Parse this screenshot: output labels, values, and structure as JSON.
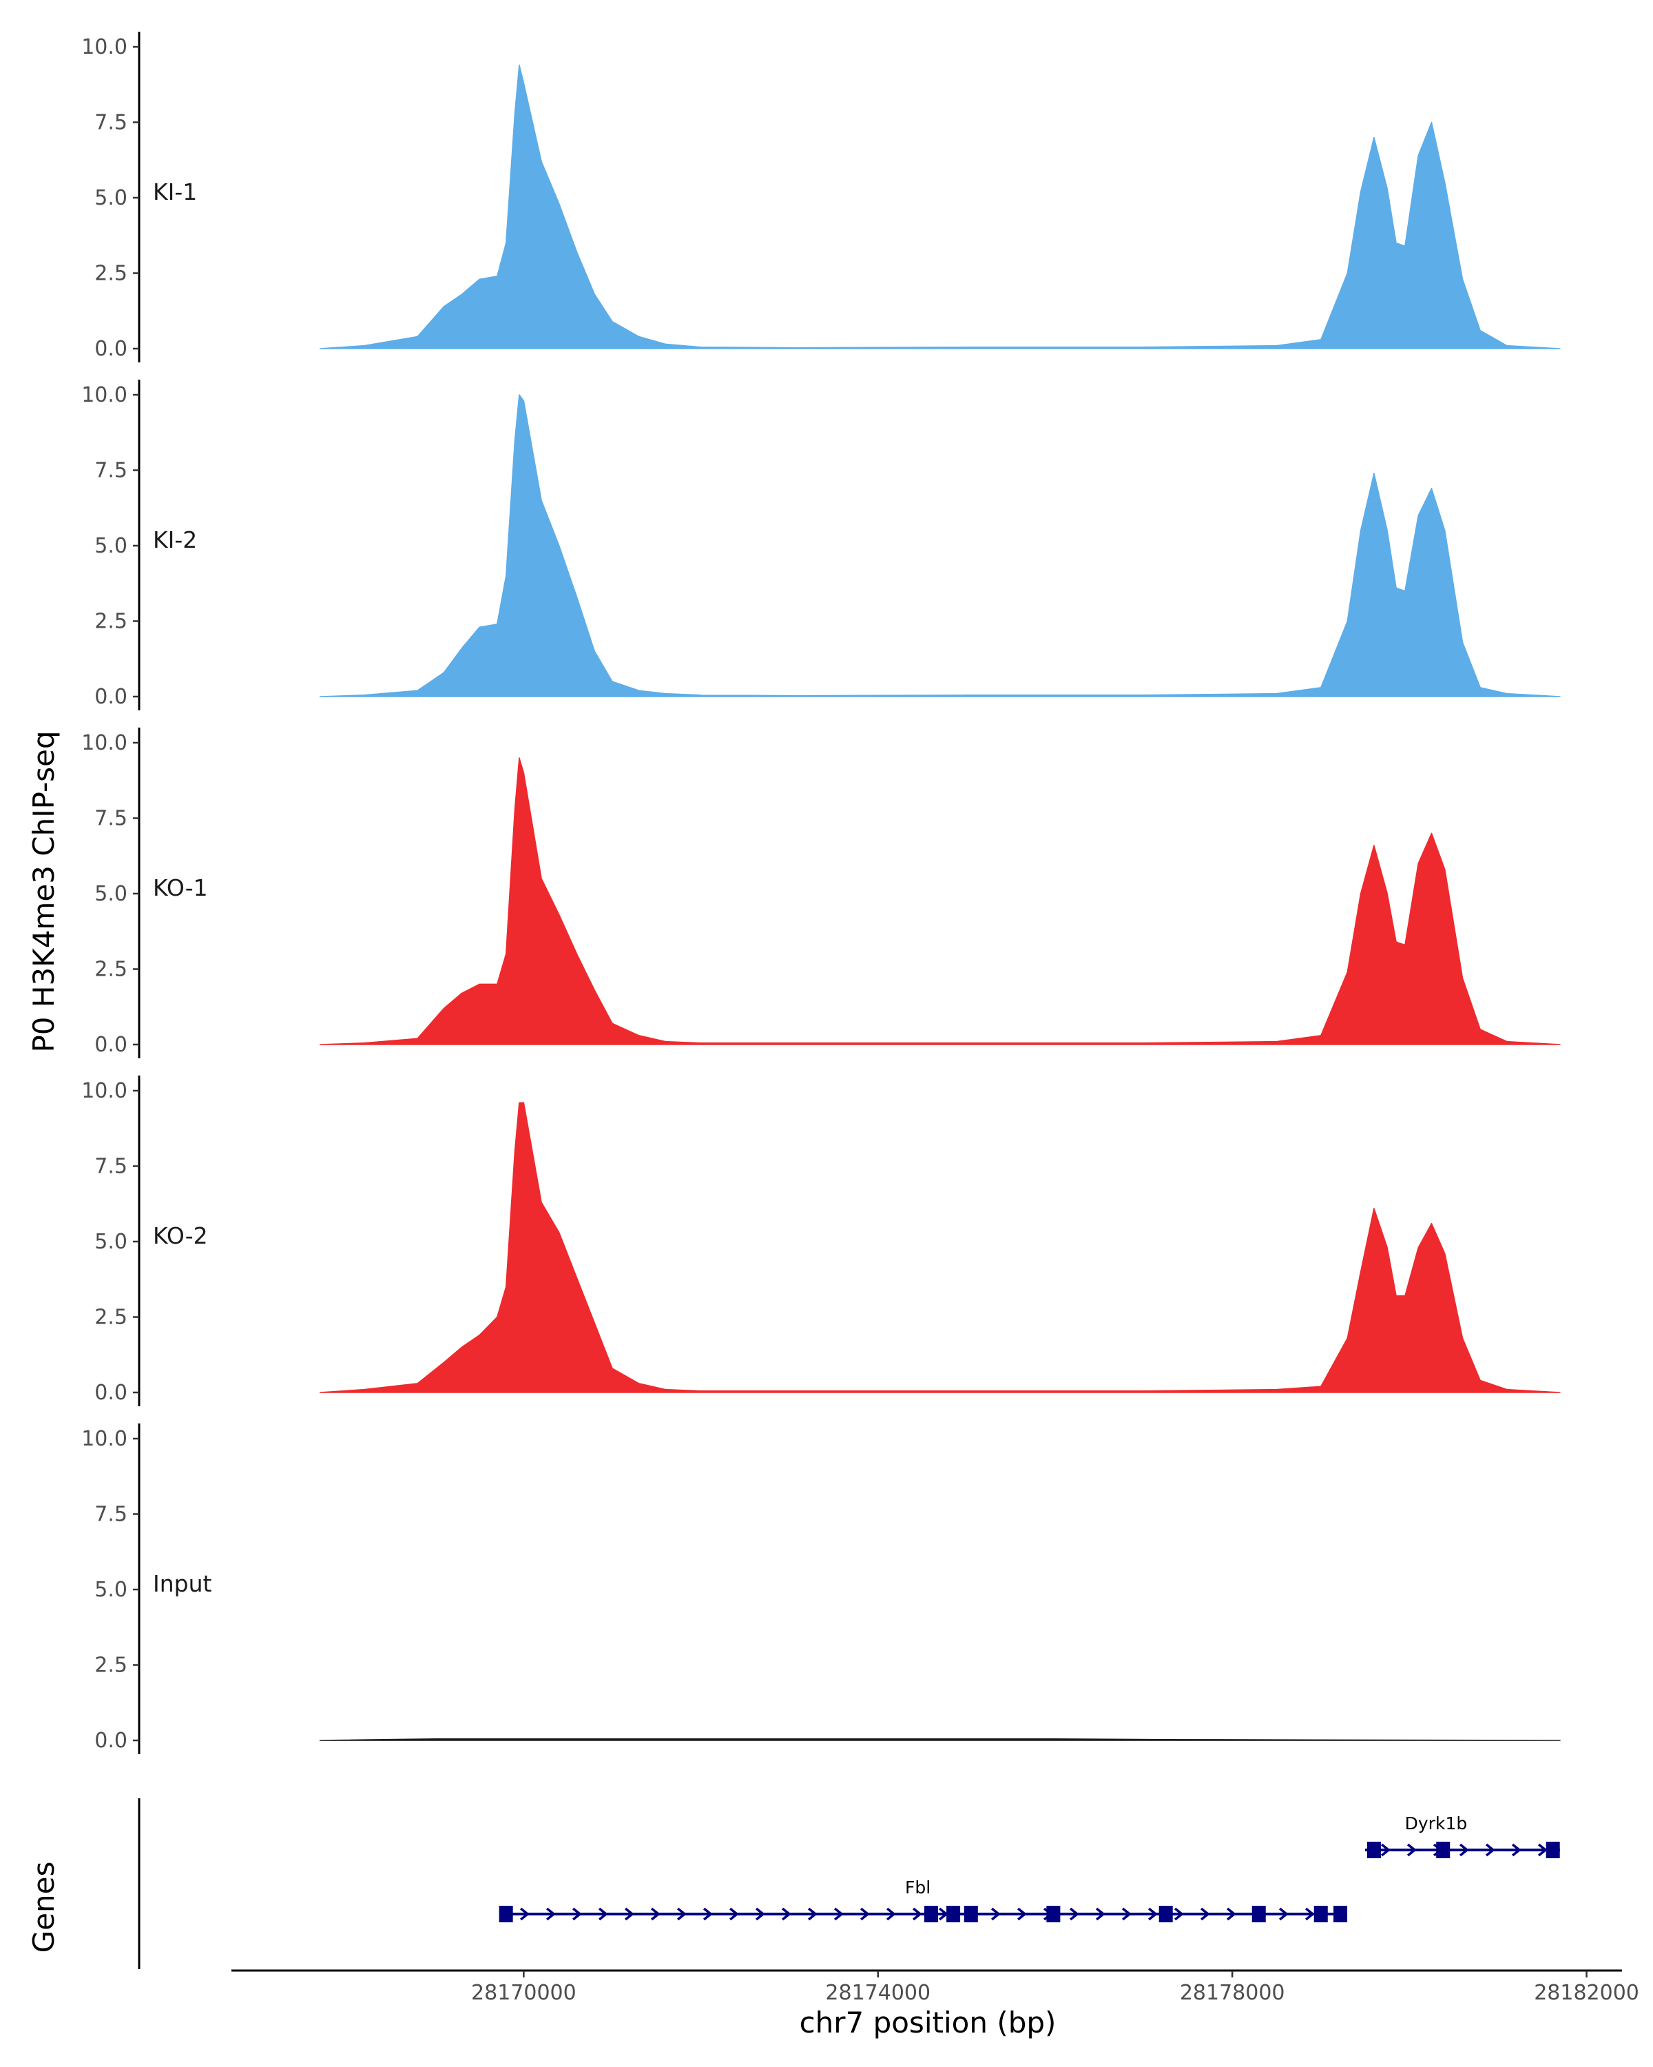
{
  "chart_data": {
    "type": "area",
    "ylabel": "P0 H3K4me3 ChIP-seq",
    "xlabel": "chr7 position (bp)",
    "genes_label": "Genes",
    "xlim": [
      28166700,
      28182400
    ],
    "ylim": [
      0,
      10.5
    ],
    "x_ticks": [
      28170000,
      28174000,
      28178000,
      28182000
    ],
    "x_tick_labels": [
      "28170000",
      "28174000",
      "28178000",
      "28182000"
    ],
    "y_ticks": [
      0,
      2.5,
      5,
      7.5,
      10
    ],
    "y_tick_labels": [
      "0.0",
      "2.5",
      "5.0",
      "7.5",
      "10.0"
    ],
    "grid": false,
    "colors": {
      "KI": "#5dade9",
      "KO": "#ee2a2e",
      "Input": "#1a1a1a",
      "gene": "#000080"
    },
    "tracks": [
      {
        "name": "KI-1",
        "color": "#5dade9",
        "x": [
          28167700,
          28168200,
          28168800,
          28169100,
          28169300,
          28169500,
          28169700,
          28169800,
          28169900,
          28169950,
          28170000,
          28170200,
          28170400,
          28170600,
          28170800,
          28171000,
          28171300,
          28171600,
          28172000,
          28173000,
          28175000,
          28177000,
          28178500,
          28179000,
          28179300,
          28179450,
          28179600,
          28179750,
          28179850,
          28179950,
          28180100,
          28180250,
          28180400,
          28180600,
          28180800,
          28181100,
          28181700
        ],
        "y": [
          0,
          0.1,
          0.4,
          1.4,
          1.8,
          2.3,
          2.4,
          3.5,
          7.8,
          9.4,
          8.8,
          6.2,
          4.8,
          3.2,
          1.8,
          0.9,
          0.4,
          0.15,
          0.05,
          0.03,
          0.05,
          0.05,
          0.1,
          0.3,
          2.5,
          5.2,
          7.0,
          5.3,
          3.5,
          3.4,
          6.4,
          7.5,
          5.5,
          2.3,
          0.6,
          0.1,
          0
        ]
      },
      {
        "name": "KI-2",
        "color": "#5dade9",
        "x": [
          28167700,
          28168200,
          28168800,
          28169100,
          28169300,
          28169500,
          28169700,
          28169800,
          28169900,
          28169950,
          28170000,
          28170200,
          28170400,
          28170600,
          28170800,
          28171000,
          28171300,
          28171600,
          28172000,
          28173000,
          28175000,
          28177000,
          28178500,
          28179000,
          28179300,
          28179450,
          28179600,
          28179750,
          28179850,
          28179950,
          28180100,
          28180250,
          28180400,
          28180600,
          28180800,
          28181100,
          28181700
        ],
        "y": [
          0,
          0.05,
          0.2,
          0.8,
          1.6,
          2.3,
          2.4,
          4.0,
          8.5,
          10.0,
          9.8,
          6.5,
          5.0,
          3.3,
          1.5,
          0.5,
          0.2,
          0.1,
          0.05,
          0.03,
          0.05,
          0.05,
          0.1,
          0.3,
          2.5,
          5.5,
          7.4,
          5.5,
          3.6,
          3.5,
          6.0,
          6.9,
          5.5,
          1.8,
          0.3,
          0.1,
          0
        ]
      },
      {
        "name": "KO-1",
        "color": "#ee2a2e",
        "x": [
          28167700,
          28168200,
          28168800,
          28169100,
          28169300,
          28169500,
          28169700,
          28169800,
          28169900,
          28169950,
          28170000,
          28170200,
          28170400,
          28170600,
          28170800,
          28171000,
          28171300,
          28171600,
          28172000,
          28173000,
          28175000,
          28177000,
          28178500,
          28179000,
          28179300,
          28179450,
          28179600,
          28179750,
          28179850,
          28179950,
          28180100,
          28180250,
          28180400,
          28180600,
          28180800,
          28181100,
          28181700
        ],
        "y": [
          0,
          0.05,
          0.2,
          1.2,
          1.7,
          2.0,
          2.0,
          3.0,
          7.8,
          9.5,
          9.0,
          5.5,
          4.3,
          3.0,
          1.8,
          0.7,
          0.3,
          0.1,
          0.05,
          0.05,
          0.05,
          0.05,
          0.1,
          0.3,
          2.4,
          5.0,
          6.6,
          5.0,
          3.4,
          3.3,
          6.0,
          7.0,
          5.8,
          2.2,
          0.5,
          0.1,
          0
        ]
      },
      {
        "name": "KO-2",
        "color": "#ee2a2e",
        "x": [
          28167700,
          28168200,
          28168800,
          28169100,
          28169300,
          28169500,
          28169700,
          28169800,
          28169900,
          28169950,
          28170000,
          28170200,
          28170400,
          28170600,
          28170800,
          28171000,
          28171300,
          28171600,
          28172000,
          28173000,
          28175000,
          28177000,
          28178500,
          28179000,
          28179300,
          28179450,
          28179600,
          28179750,
          28179850,
          28179950,
          28180100,
          28180250,
          28180400,
          28180600,
          28180800,
          28181100,
          28181700
        ],
        "y": [
          0,
          0.1,
          0.3,
          1.0,
          1.5,
          1.9,
          2.5,
          3.5,
          8.0,
          9.6,
          9.6,
          6.3,
          5.3,
          3.8,
          2.3,
          0.8,
          0.3,
          0.1,
          0.05,
          0.05,
          0.05,
          0.05,
          0.1,
          0.2,
          1.8,
          4.0,
          6.1,
          4.8,
          3.2,
          3.2,
          4.8,
          5.6,
          4.6,
          1.8,
          0.4,
          0.1,
          0
        ]
      },
      {
        "name": "Input",
        "color": "#1a1a1a",
        "x": [
          28167700,
          28169000,
          28172000,
          28176000,
          28177200,
          28181700
        ],
        "y": [
          0,
          0.05,
          0.05,
          0.05,
          0.03,
          0
        ]
      }
    ],
    "gene_track": [
      {
        "name": "Fbl",
        "start": 28169780,
        "end": 28179230,
        "row": 1,
        "label_x": 28174450,
        "exons": [
          28169800,
          28174600,
          28174850,
          28175050,
          28175980,
          28177250,
          28178300,
          28179000,
          28179220
        ]
      },
      {
        "name": "Dyrk1b",
        "start": 28179500,
        "end": 28181700,
        "row": 0,
        "label_x": 28180300,
        "exons": [
          28179600,
          28180380,
          28181620
        ]
      }
    ]
  }
}
